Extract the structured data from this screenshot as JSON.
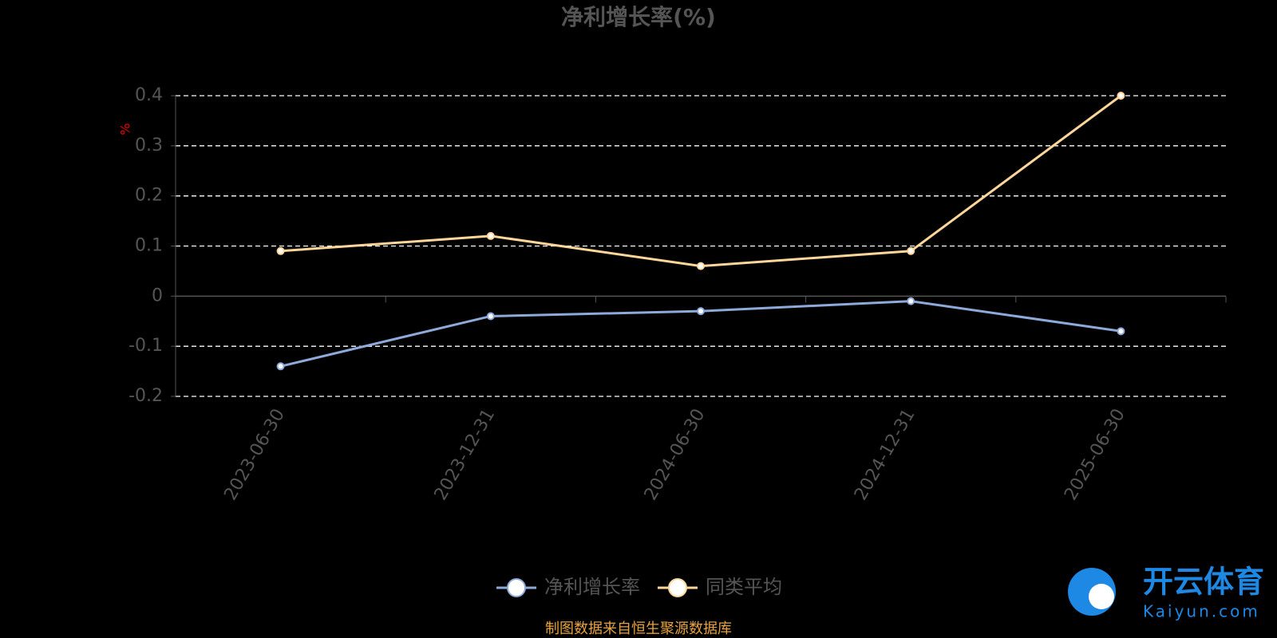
{
  "chart_data": {
    "type": "line",
    "title": "净利增长率(%)",
    "y_label": "%",
    "categories": [
      "2023-06-30",
      "2023-12-31",
      "2024-06-30",
      "2024-12-31",
      "2025-06-30"
    ],
    "series": [
      {
        "name": "净利增长率",
        "color": "#8eaadb",
        "values": [
          -0.14,
          -0.04,
          -0.03,
          -0.01,
          -0.07
        ]
      },
      {
        "name": "同类平均",
        "color": "#ffd699",
        "values": [
          0.09,
          0.12,
          0.06,
          0.09,
          0.4
        ]
      }
    ],
    "ylim": [
      -0.2,
      0.4
    ],
    "yticks": [
      -0.2,
      -0.1,
      0,
      0.1,
      0.2,
      0.3,
      0.4
    ],
    "grid": true,
    "legend": "bottom",
    "source": "制图数据来自恒生聚源数据库"
  },
  "watermark": {
    "brand": "开云体育",
    "site": "Kaiyun.com"
  }
}
